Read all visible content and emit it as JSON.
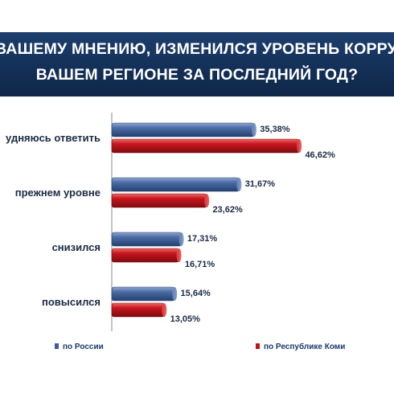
{
  "title_lines": [
    "ВАШЕМУ МНЕНИЮ, ИЗМЕНИЛСЯ УРОВЕНЬ КОРРУ",
    "ВАШЕМ РЕГИОНЕ ЗА ПОСЛЕДНИЙ ГОД?"
  ],
  "chart_data": {
    "type": "bar",
    "orientation": "horizontal",
    "categories": [
      "удняюсь ответить",
      "прежнем уровне",
      "снизился",
      "повысился"
    ],
    "series": [
      {
        "name": "по России",
        "color": "#3d5d96",
        "values": [
          35.38,
          31.67,
          17.31,
          15.64
        ],
        "labels": [
          "35,38%",
          "31,67%",
          "17,31%",
          "15,64%"
        ]
      },
      {
        "name": "по Республике Коми",
        "color": "#c0141c",
        "values": [
          46.62,
          23.62,
          16.71,
          13.05
        ],
        "labels": [
          "46,62%",
          "23,62%",
          "16,71%",
          "13,05%"
        ]
      }
    ],
    "xlim": [
      0,
      50
    ],
    "grid": false,
    "legend_position": "bottom"
  }
}
